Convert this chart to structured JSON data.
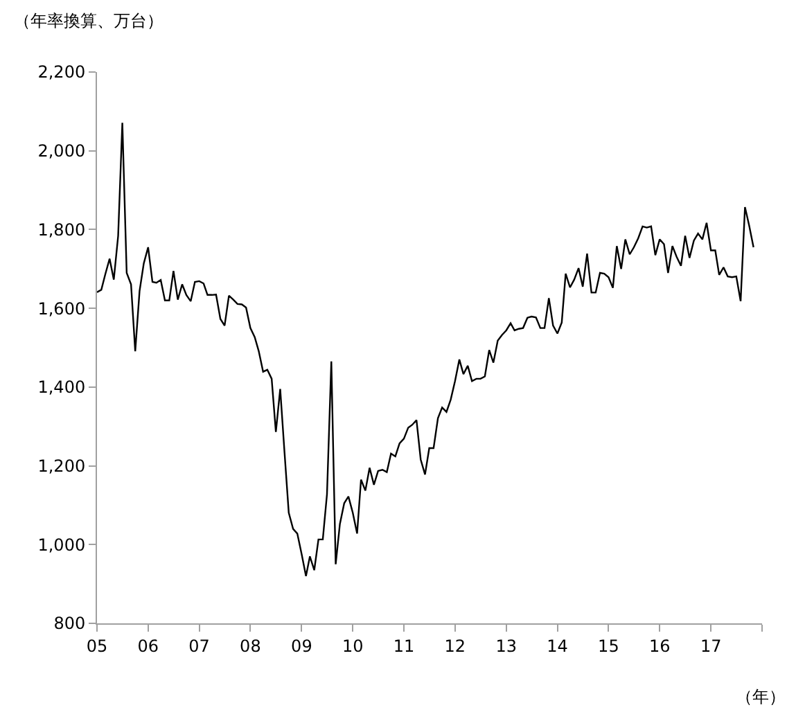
{
  "chart_data": {
    "type": "line",
    "ylabel": "（年率換算、万台）",
    "xlabel": "（年）",
    "x": [
      "2005-01",
      "2005-02",
      "2005-03",
      "2005-04",
      "2005-05",
      "2005-06",
      "2005-07",
      "2005-08",
      "2005-09",
      "2005-10",
      "2005-11",
      "2005-12",
      "2006-01",
      "2006-02",
      "2006-03",
      "2006-04",
      "2006-05",
      "2006-06",
      "2006-07",
      "2006-08",
      "2006-09",
      "2006-10",
      "2006-11",
      "2006-12",
      "2007-01",
      "2007-02",
      "2007-03",
      "2007-04",
      "2007-05",
      "2007-06",
      "2007-07",
      "2007-08",
      "2007-09",
      "2007-10",
      "2007-11",
      "2007-12",
      "2008-01",
      "2008-02",
      "2008-03",
      "2008-04",
      "2008-05",
      "2008-06",
      "2008-07",
      "2008-08",
      "2008-09",
      "2008-10",
      "2008-11",
      "2008-12",
      "2009-01",
      "2009-02",
      "2009-03",
      "2009-04",
      "2009-05",
      "2009-06",
      "2009-07",
      "2009-08",
      "2009-09",
      "2009-10",
      "2009-11",
      "2009-12",
      "2010-01",
      "2010-02",
      "2010-03",
      "2010-04",
      "2010-05",
      "2010-06",
      "2010-07",
      "2010-08",
      "2010-09",
      "2010-10",
      "2010-11",
      "2010-12",
      "2011-01",
      "2011-02",
      "2011-03",
      "2011-04",
      "2011-05",
      "2011-06",
      "2011-07",
      "2011-08",
      "2011-09",
      "2011-10",
      "2011-11",
      "2011-12",
      "2012-01",
      "2012-02",
      "2012-03",
      "2012-04",
      "2012-05",
      "2012-06",
      "2012-07",
      "2012-08",
      "2012-09",
      "2012-10",
      "2012-11",
      "2012-12",
      "2013-01",
      "2013-02",
      "2013-03",
      "2013-04",
      "2013-05",
      "2013-06",
      "2013-07",
      "2013-08",
      "2013-09",
      "2013-10",
      "2013-11",
      "2013-12",
      "2014-01",
      "2014-02",
      "2014-03",
      "2014-04",
      "2014-05",
      "2014-06",
      "2014-07",
      "2014-08",
      "2014-09",
      "2014-10",
      "2014-11",
      "2014-12",
      "2015-01",
      "2015-02",
      "2015-03",
      "2015-04",
      "2015-05",
      "2015-06",
      "2015-07",
      "2015-08",
      "2015-09",
      "2015-10",
      "2015-11",
      "2015-12",
      "2016-01",
      "2016-02",
      "2016-03",
      "2016-04",
      "2016-05",
      "2016-06",
      "2016-07",
      "2016-08",
      "2016-09",
      "2016-10",
      "2016-11",
      "2016-12",
      "2017-01",
      "2017-02",
      "2017-03",
      "2017-04",
      "2017-05",
      "2017-06",
      "2017-07",
      "2017-08",
      "2017-09",
      "2017-10",
      "2017-11"
    ],
    "series": [
      {
        "color": "#000000",
        "values": [
          1641,
          1647,
          1686,
          1726,
          1673,
          1784,
          2071,
          1690,
          1661,
          1491,
          1644,
          1714,
          1755,
          1667,
          1665,
          1672,
          1620,
          1620,
          1695,
          1622,
          1661,
          1634,
          1618,
          1667,
          1669,
          1663,
          1634,
          1634,
          1635,
          1573,
          1556,
          1632,
          1622,
          1611,
          1610,
          1602,
          1550,
          1527,
          1491,
          1439,
          1444,
          1421,
          1286,
          1395,
          1233,
          1081,
          1040,
          1028,
          976,
          920,
          970,
          935,
          1013,
          1013,
          1128,
          1465,
          950,
          1052,
          1105,
          1122,
          1081,
          1028,
          1165,
          1137,
          1195,
          1152,
          1187,
          1190,
          1184,
          1231,
          1224,
          1257,
          1269,
          1297,
          1304,
          1316,
          1216,
          1178,
          1245,
          1245,
          1321,
          1348,
          1337,
          1368,
          1415,
          1470,
          1433,
          1454,
          1415,
          1421,
          1421,
          1427,
          1494,
          1462,
          1518,
          1532,
          1544,
          1562,
          1544,
          1548,
          1550,
          1576,
          1579,
          1577,
          1550,
          1550,
          1626,
          1556,
          1536,
          1564,
          1688,
          1653,
          1673,
          1702,
          1655,
          1739,
          1640,
          1640,
          1690,
          1688,
          1679,
          1652,
          1758,
          1700,
          1775,
          1737,
          1755,
          1778,
          1808,
          1805,
          1808,
          1735,
          1775,
          1763,
          1690,
          1758,
          1731,
          1708,
          1784,
          1728,
          1772,
          1790,
          1775,
          1817,
          1747,
          1747,
          1685,
          1704,
          1681,
          1679,
          1681,
          1618,
          1857,
          1810,
          1755
        ]
      }
    ],
    "xlim": [
      "2005-01",
      "2018-01"
    ],
    "xticks": [
      {
        "value": "2005-01",
        "label": "05"
      },
      {
        "value": "2006-01",
        "label": "06"
      },
      {
        "value": "2007-01",
        "label": "07"
      },
      {
        "value": "2008-01",
        "label": "08"
      },
      {
        "value": "2009-01",
        "label": "09"
      },
      {
        "value": "2010-01",
        "label": "10"
      },
      {
        "value": "2011-01",
        "label": "11"
      },
      {
        "value": "2012-01",
        "label": "12"
      },
      {
        "value": "2013-01",
        "label": "13"
      },
      {
        "value": "2014-01",
        "label": "14"
      },
      {
        "value": "2015-01",
        "label": "15"
      },
      {
        "value": "2016-01",
        "label": "16"
      },
      {
        "value": "2017-01",
        "label": "17"
      },
      {
        "value": "2018-01",
        "label": null
      }
    ],
    "ylim": [
      800,
      2200
    ],
    "yticks": [
      {
        "value": 800,
        "label": "800"
      },
      {
        "value": 1000,
        "label": "1,000"
      },
      {
        "value": 1200,
        "label": "1,200"
      },
      {
        "value": 1400,
        "label": "1,400"
      },
      {
        "value": 1600,
        "label": "1,600"
      },
      {
        "value": 1800,
        "label": "1,800"
      },
      {
        "value": 2000,
        "label": "2,000"
      },
      {
        "value": 2200,
        "label": "2,200"
      }
    ],
    "marker": "none",
    "line_style": "solid"
  }
}
